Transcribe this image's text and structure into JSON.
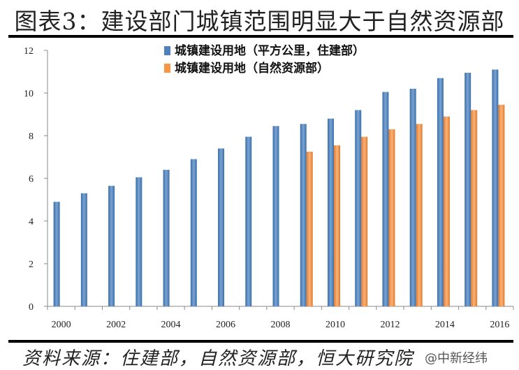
{
  "title": "图表3：建设部门城镇范围明显大于自然资源部",
  "source": "资料来源：住建部，自然资源部，恒大研究院",
  "watermark": "@中新经纬",
  "chart_data": {
    "type": "bar",
    "categories": [
      "2000",
      "2001",
      "2002",
      "2003",
      "2004",
      "2005",
      "2006",
      "2007",
      "2008",
      "2009",
      "2010",
      "2011",
      "2012",
      "2013",
      "2014",
      "2015",
      "2016"
    ],
    "x_tick_labels": [
      "2000",
      "2002",
      "2004",
      "2006",
      "2008",
      "2010",
      "2012",
      "2014",
      "2016"
    ],
    "ylim": [
      0,
      12
    ],
    "y_ticks": [
      0,
      2,
      4,
      6,
      8,
      10,
      12
    ],
    "grid": false,
    "legend_position": "top",
    "series": [
      {
        "name": "城镇建设用地（平方公里，住建部）",
        "color": "#4f81bd",
        "values": [
          4.9,
          5.3,
          5.65,
          6.05,
          6.4,
          6.9,
          7.4,
          7.95,
          8.45,
          8.55,
          8.8,
          9.2,
          10.05,
          10.2,
          10.7,
          10.95,
          11.1
        ]
      },
      {
        "name": "城镇建设用地（自然资源部）",
        "color": "#f79646",
        "values": [
          null,
          null,
          null,
          null,
          null,
          null,
          null,
          null,
          null,
          7.25,
          7.55,
          7.95,
          8.3,
          8.55,
          8.9,
          9.2,
          9.45
        ]
      }
    ]
  }
}
